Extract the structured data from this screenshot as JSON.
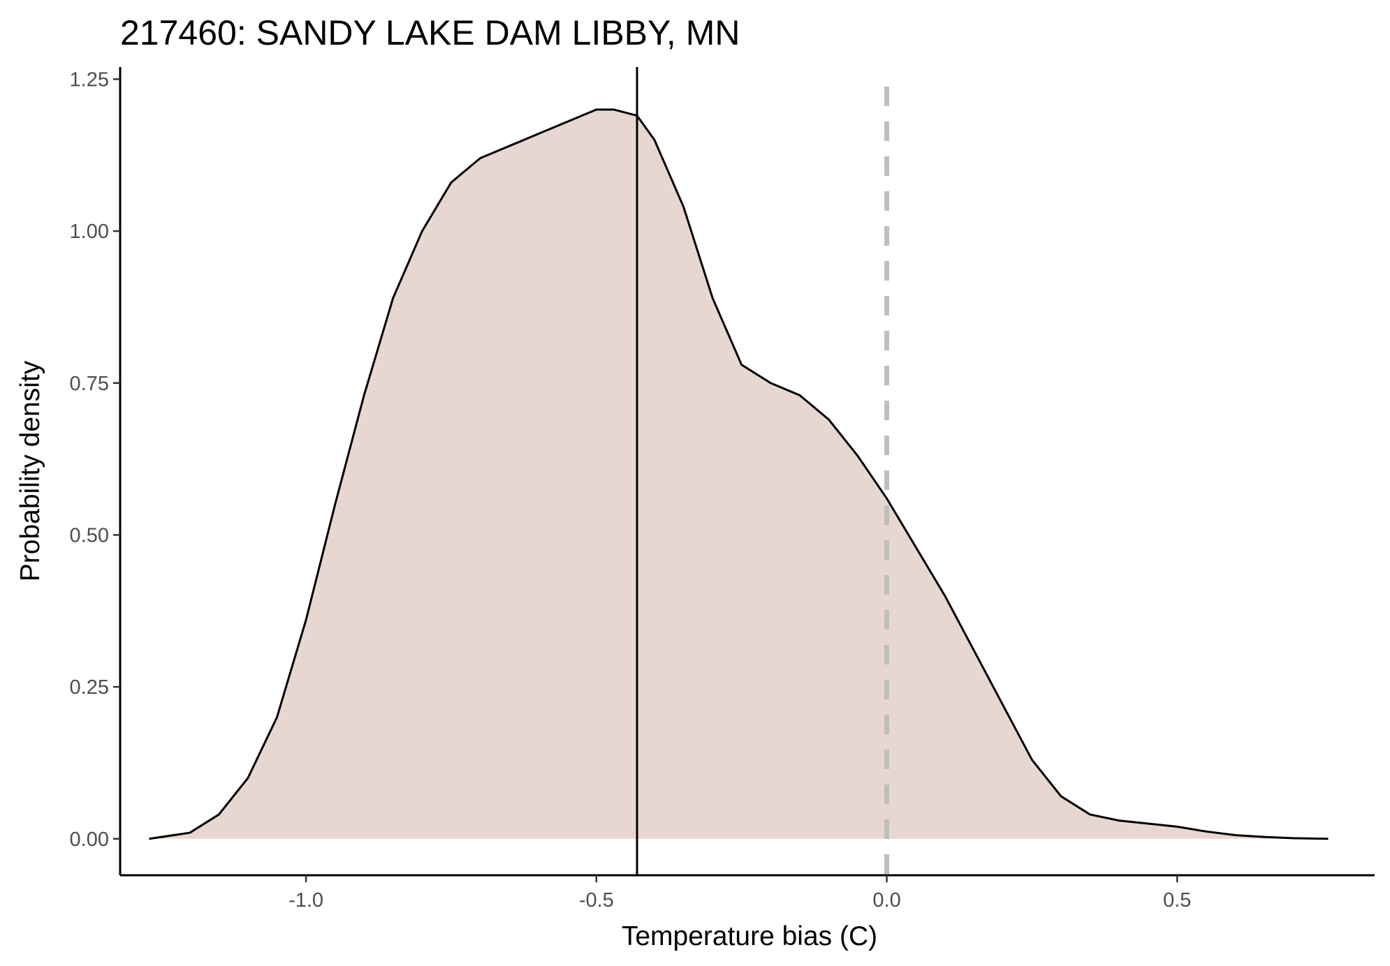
{
  "chart_data": {
    "type": "area",
    "title": "217460: SANDY LAKE DAM LIBBY, MN",
    "xlabel": "Temperature bias (C)",
    "ylabel": "Probability density",
    "xlim": [
      -1.32,
      0.84
    ],
    "ylim": [
      -0.06,
      1.27
    ],
    "x_ticks": [
      -1.0,
      -0.5,
      0.0,
      0.5
    ],
    "x_tick_labels": [
      "-1.0",
      "-0.5",
      "0.0",
      "0.5"
    ],
    "y_ticks": [
      0.0,
      0.25,
      0.5,
      0.75,
      1.0,
      1.25
    ],
    "y_tick_labels": [
      "0.00",
      "0.25",
      "0.50",
      "0.75",
      "1.00",
      "1.25"
    ],
    "grid": false,
    "legend": "none",
    "series": [
      {
        "x": [
          -1.27,
          -1.2,
          -1.15,
          -1.1,
          -1.05,
          -1.0,
          -0.95,
          -0.9,
          -0.85,
          -0.8,
          -0.75,
          -0.7,
          -0.65,
          -0.6,
          -0.55,
          -0.5,
          -0.47,
          -0.43,
          -0.4,
          -0.35,
          -0.3,
          -0.25,
          -0.2,
          -0.15,
          -0.1,
          -0.05,
          0.0,
          0.05,
          0.1,
          0.15,
          0.2,
          0.25,
          0.3,
          0.35,
          0.4,
          0.45,
          0.5,
          0.55,
          0.6,
          0.65,
          0.7,
          0.76
        ],
        "y": [
          0.0,
          0.01,
          0.04,
          0.1,
          0.2,
          0.36,
          0.55,
          0.73,
          0.89,
          1.0,
          1.08,
          1.12,
          1.14,
          1.16,
          1.18,
          1.2,
          1.2,
          1.19,
          1.15,
          1.04,
          0.89,
          0.78,
          0.75,
          0.73,
          0.69,
          0.63,
          0.56,
          0.48,
          0.4,
          0.31,
          0.22,
          0.13,
          0.07,
          0.04,
          0.03,
          0.025,
          0.02,
          0.012,
          0.006,
          0.003,
          0.001,
          0.0
        ],
        "fill": "#e8d7d1",
        "stroke": "#000000"
      }
    ],
    "reference_lines": [
      {
        "x": -0.43,
        "style": "solid",
        "color": "#000000"
      },
      {
        "x": 0.0,
        "style": "dashed",
        "color": "#bebebe"
      }
    ]
  }
}
